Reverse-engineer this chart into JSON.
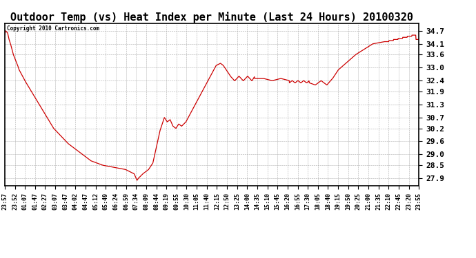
{
  "title": "Outdoor Temp (vs) Heat Index per Minute (Last 24 Hours) 20100320",
  "copyright_text": "Copyright 2010 Cartronics.com",
  "title_fontsize": 11,
  "line_color": "#cc0000",
  "background_color": "#ffffff",
  "grid_color": "#aaaaaa",
  "yticks": [
    27.9,
    28.5,
    29.0,
    29.6,
    30.2,
    30.7,
    31.3,
    31.9,
    32.4,
    33.0,
    33.6,
    34.1,
    34.7
  ],
  "ylim": [
    27.55,
    35.05
  ],
  "xtick_labels": [
    "23:57",
    "23:52",
    "01:07",
    "01:47",
    "02:27",
    "03:07",
    "03:47",
    "04:02",
    "04:47",
    "05:12",
    "05:49",
    "06:24",
    "06:59",
    "07:34",
    "08:09",
    "08:44",
    "09:19",
    "09:55",
    "10:30",
    "11:05",
    "11:40",
    "12:15",
    "12:50",
    "13:25",
    "14:00",
    "14:35",
    "15:10",
    "15:45",
    "16:20",
    "16:55",
    "17:30",
    "18:05",
    "18:40",
    "19:15",
    "19:50",
    "20:25",
    "21:00",
    "21:35",
    "22:10",
    "22:45",
    "23:20",
    "23:55"
  ]
}
